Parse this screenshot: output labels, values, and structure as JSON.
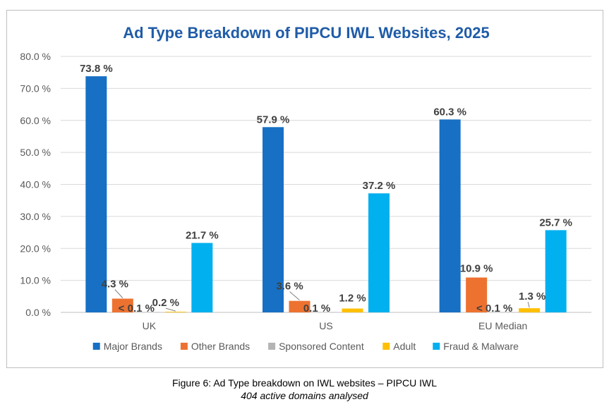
{
  "chart_data": {
    "type": "bar",
    "title": "Ad Type Breakdown of PIPCU IWL Websites, 2025",
    "categories": [
      "UK",
      "US",
      "EU Median"
    ],
    "ylim": [
      0,
      80
    ],
    "yticks": [
      "0.0 %",
      "10.0 %",
      "20.0 %",
      "30.0 %",
      "40.0 %",
      "50.0 %",
      "60.0 %",
      "70.0 %",
      "80.0 %"
    ],
    "grid": true,
    "legend_position": "bottom",
    "series": [
      {
        "name": "Major Brands",
        "color": "#1770c4",
        "values": [
          73.8,
          57.9,
          60.3
        ],
        "labels": [
          "73.8 %",
          "57.9 %",
          "60.3 %"
        ]
      },
      {
        "name": "Other Brands",
        "color": "#ed7230",
        "values": [
          4.3,
          3.6,
          10.9
        ],
        "labels": [
          "4.3 %",
          "3.6 %",
          "10.9 %"
        ]
      },
      {
        "name": "Sponsored Content",
        "color": "#b4b4b4",
        "values": [
          0.05,
          0.1,
          0.05
        ],
        "labels": [
          "< 0.1 %",
          "0.1 %",
          "< 0.1 %"
        ]
      },
      {
        "name": "Adult",
        "color": "#fec000",
        "values": [
          0.2,
          1.2,
          1.3
        ],
        "labels": [
          "0.2 %",
          "1.2 %",
          "1.3 %"
        ]
      },
      {
        "name": "Fraud & Malware",
        "color": "#00b0ef",
        "values": [
          21.7,
          37.2,
          25.7
        ],
        "labels": [
          "21.7 %",
          "37.2 %",
          "25.7 %"
        ]
      }
    ]
  },
  "caption": {
    "line1": "Figure 6: Ad Type breakdown on IWL websites – PIPCU IWL",
    "line2": "404 active domains analysed"
  }
}
